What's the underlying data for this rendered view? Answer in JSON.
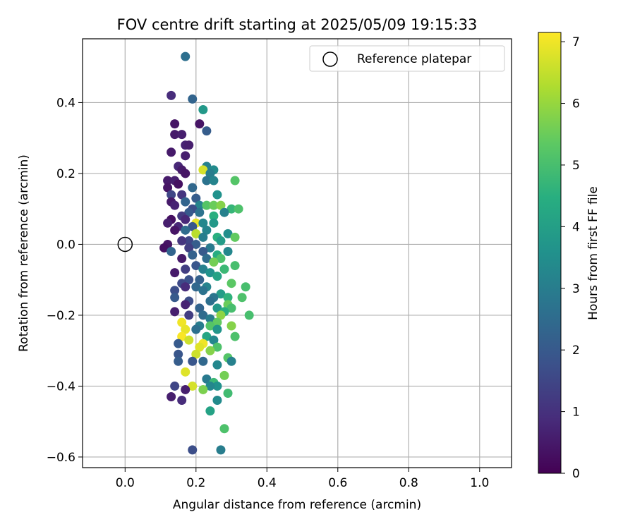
{
  "chart_data": {
    "type": "scatter",
    "title": "FOV centre drift starting at 2025/05/09 19:15:33",
    "xlabel": "Angular distance from reference (arcmin)",
    "ylabel": "Rotation from reference (arcmin)",
    "xlim": [
      -0.12,
      1.09
    ],
    "ylim": [
      -0.63,
      0.58
    ],
    "xticks": [
      "0.0",
      "0.2",
      "0.4",
      "0.6",
      "0.8",
      "1.0"
    ],
    "yticks": [
      "0.4",
      "0.2",
      "0.0",
      "−0.2",
      "−0.4",
      "−0.6"
    ],
    "grid": true,
    "legend": {
      "label": "Reference platepar",
      "placement": "top-right"
    },
    "reference_point": {
      "x": 0.0,
      "y": 0.0
    },
    "colorbar": {
      "label": "Hours from first FF file",
      "range": [
        0,
        7.15
      ],
      "ticks": [
        "0",
        "1",
        "2",
        "3",
        "4",
        "5",
        "6",
        "7"
      ],
      "colormap": "viridis"
    },
    "points": [
      {
        "x": 0.17,
        "y": 0.53,
        "h": 2.6
      },
      {
        "x": 0.13,
        "y": 0.42,
        "h": 0.9
      },
      {
        "x": 0.19,
        "y": 0.41,
        "h": 2.3
      },
      {
        "x": 0.22,
        "y": 0.38,
        "h": 3.8
      },
      {
        "x": 0.14,
        "y": 0.34,
        "h": 0.4
      },
      {
        "x": 0.21,
        "y": 0.34,
        "h": 0.4
      },
      {
        "x": 0.14,
        "y": 0.31,
        "h": 0.5
      },
      {
        "x": 0.16,
        "y": 0.31,
        "h": 0.6
      },
      {
        "x": 0.23,
        "y": 0.32,
        "h": 2.1
      },
      {
        "x": 0.17,
        "y": 0.28,
        "h": 0.7
      },
      {
        "x": 0.18,
        "y": 0.28,
        "h": 0.6
      },
      {
        "x": 0.13,
        "y": 0.26,
        "h": 0.5
      },
      {
        "x": 0.17,
        "y": 0.25,
        "h": 0.6
      },
      {
        "x": 0.15,
        "y": 0.22,
        "h": 0.8
      },
      {
        "x": 0.16,
        "y": 0.21,
        "h": 0.5
      },
      {
        "x": 0.23,
        "y": 0.22,
        "h": 3.1
      },
      {
        "x": 0.22,
        "y": 0.21,
        "h": 6.7
      },
      {
        "x": 0.25,
        "y": 0.21,
        "h": 3.4
      },
      {
        "x": 0.24,
        "y": 0.2,
        "h": 3.0
      },
      {
        "x": 0.17,
        "y": 0.2,
        "h": 0.4
      },
      {
        "x": 0.12,
        "y": 0.18,
        "h": 0.5
      },
      {
        "x": 0.14,
        "y": 0.18,
        "h": 0.6
      },
      {
        "x": 0.31,
        "y": 0.18,
        "h": 5.2
      },
      {
        "x": 0.23,
        "y": 0.18,
        "h": 2.7
      },
      {
        "x": 0.25,
        "y": 0.18,
        "h": 3.2
      },
      {
        "x": 0.15,
        "y": 0.17,
        "h": 0.3
      },
      {
        "x": 0.12,
        "y": 0.16,
        "h": 0.4
      },
      {
        "x": 0.19,
        "y": 0.16,
        "h": 2.4
      },
      {
        "x": 0.13,
        "y": 0.14,
        "h": 1.5
      },
      {
        "x": 0.16,
        "y": 0.14,
        "h": 1.1
      },
      {
        "x": 0.2,
        "y": 0.13,
        "h": 2.1
      },
      {
        "x": 0.26,
        "y": 0.14,
        "h": 3.6
      },
      {
        "x": 0.17,
        "y": 0.12,
        "h": 2.3
      },
      {
        "x": 0.21,
        "y": 0.11,
        "h": 3.2
      },
      {
        "x": 0.13,
        "y": 0.12,
        "h": 0.5
      },
      {
        "x": 0.14,
        "y": 0.11,
        "h": 0.7
      },
      {
        "x": 0.23,
        "y": 0.11,
        "h": 5.2
      },
      {
        "x": 0.25,
        "y": 0.11,
        "h": 5.5
      },
      {
        "x": 0.27,
        "y": 0.11,
        "h": 5.8
      },
      {
        "x": 0.3,
        "y": 0.1,
        "h": 4.7
      },
      {
        "x": 0.32,
        "y": 0.1,
        "h": 5.1
      },
      {
        "x": 0.28,
        "y": 0.09,
        "h": 3.1
      },
      {
        "x": 0.19,
        "y": 0.1,
        "h": 1.7
      },
      {
        "x": 0.18,
        "y": 0.09,
        "h": 2.0
      },
      {
        "x": 0.21,
        "y": 0.09,
        "h": 2.7
      },
      {
        "x": 0.16,
        "y": 0.08,
        "h": 1.2
      },
      {
        "x": 0.25,
        "y": 0.08,
        "h": 4.5
      },
      {
        "x": 0.13,
        "y": 0.07,
        "h": 0.3
      },
      {
        "x": 0.17,
        "y": 0.07,
        "h": 0.8
      },
      {
        "x": 0.2,
        "y": 0.06,
        "h": 6.9
      },
      {
        "x": 0.22,
        "y": 0.06,
        "h": 3.3
      },
      {
        "x": 0.25,
        "y": 0.06,
        "h": 3.8
      },
      {
        "x": 0.12,
        "y": 0.06,
        "h": 0.6
      },
      {
        "x": 0.15,
        "y": 0.05,
        "h": 0.8
      },
      {
        "x": 0.19,
        "y": 0.05,
        "h": 1.9
      },
      {
        "x": 0.17,
        "y": 0.04,
        "h": 2.5
      },
      {
        "x": 0.23,
        "y": 0.04,
        "h": 3.2
      },
      {
        "x": 0.14,
        "y": 0.04,
        "h": 0.4
      },
      {
        "x": 0.29,
        "y": 0.03,
        "h": 3.5
      },
      {
        "x": 0.2,
        "y": 0.03,
        "h": 6.4
      },
      {
        "x": 0.31,
        "y": 0.02,
        "h": 5.4
      },
      {
        "x": 0.26,
        "y": 0.02,
        "h": 4.5
      },
      {
        "x": 0.22,
        "y": 0.02,
        "h": 3.0
      },
      {
        "x": 0.18,
        "y": 0.01,
        "h": 1.5
      },
      {
        "x": 0.16,
        "y": 0.01,
        "h": 1.1
      },
      {
        "x": 0.27,
        "y": 0.01,
        "h": 3.9
      },
      {
        "x": 0.12,
        "y": 0.0,
        "h": 0.4
      },
      {
        "x": 0.2,
        "y": 0.0,
        "h": 2.1
      },
      {
        "x": 0.24,
        "y": -0.01,
        "h": 2.9
      },
      {
        "x": 0.11,
        "y": -0.01,
        "h": 0.3
      },
      {
        "x": 0.13,
        "y": -0.02,
        "h": 2.3
      },
      {
        "x": 0.18,
        "y": -0.01,
        "h": 1.3
      },
      {
        "x": 0.22,
        "y": -0.02,
        "h": 2.0
      },
      {
        "x": 0.29,
        "y": -0.02,
        "h": 3.3
      },
      {
        "x": 0.26,
        "y": -0.03,
        "h": 4.4
      },
      {
        "x": 0.16,
        "y": -0.04,
        "h": 0.5
      },
      {
        "x": 0.19,
        "y": -0.03,
        "h": 2.2
      },
      {
        "x": 0.23,
        "y": -0.04,
        "h": 2.5
      },
      {
        "x": 0.27,
        "y": -0.04,
        "h": 5.1
      },
      {
        "x": 0.25,
        "y": -0.05,
        "h": 5.6
      },
      {
        "x": 0.2,
        "y": -0.06,
        "h": 1.9
      },
      {
        "x": 0.31,
        "y": -0.06,
        "h": 5.0
      },
      {
        "x": 0.17,
        "y": -0.07,
        "h": 1.3
      },
      {
        "x": 0.22,
        "y": -0.07,
        "h": 3.1
      },
      {
        "x": 0.28,
        "y": -0.07,
        "h": 4.8
      },
      {
        "x": 0.14,
        "y": -0.08,
        "h": 0.5
      },
      {
        "x": 0.24,
        "y": -0.08,
        "h": 3.6
      },
      {
        "x": 0.26,
        "y": -0.09,
        "h": 4.1
      },
      {
        "x": 0.18,
        "y": -0.1,
        "h": 1.8
      },
      {
        "x": 0.21,
        "y": -0.1,
        "h": 2.2
      },
      {
        "x": 0.16,
        "y": -0.11,
        "h": 1.6
      },
      {
        "x": 0.3,
        "y": -0.11,
        "h": 5.3
      },
      {
        "x": 0.34,
        "y": -0.12,
        "h": 5.0
      },
      {
        "x": 0.23,
        "y": -0.12,
        "h": 3.2
      },
      {
        "x": 0.2,
        "y": -0.12,
        "h": 2.4
      },
      {
        "x": 0.17,
        "y": -0.12,
        "h": 0.9
      },
      {
        "x": 0.14,
        "y": -0.13,
        "h": 1.7
      },
      {
        "x": 0.22,
        "y": -0.13,
        "h": 2.7
      },
      {
        "x": 0.27,
        "y": -0.14,
        "h": 3.9
      },
      {
        "x": 0.25,
        "y": -0.15,
        "h": 2.8
      },
      {
        "x": 0.29,
        "y": -0.15,
        "h": 4.6
      },
      {
        "x": 0.33,
        "y": -0.15,
        "h": 5.1
      },
      {
        "x": 0.14,
        "y": -0.15,
        "h": 2.0
      },
      {
        "x": 0.18,
        "y": -0.16,
        "h": 1.7
      },
      {
        "x": 0.24,
        "y": -0.16,
        "h": 2.6
      },
      {
        "x": 0.17,
        "y": -0.17,
        "h": 0.7
      },
      {
        "x": 0.29,
        "y": -0.17,
        "h": 5.5
      },
      {
        "x": 0.3,
        "y": -0.18,
        "h": 5.0
      },
      {
        "x": 0.21,
        "y": -0.18,
        "h": 2.3
      },
      {
        "x": 0.26,
        "y": -0.18,
        "h": 3.8
      },
      {
        "x": 0.14,
        "y": -0.19,
        "h": 0.6
      },
      {
        "x": 0.28,
        "y": -0.19,
        "h": 4.5
      },
      {
        "x": 0.22,
        "y": -0.2,
        "h": 2.5
      },
      {
        "x": 0.35,
        "y": -0.2,
        "h": 5.0
      },
      {
        "x": 0.18,
        "y": -0.2,
        "h": 1.3
      },
      {
        "x": 0.27,
        "y": -0.2,
        "h": 5.9
      },
      {
        "x": 0.24,
        "y": -0.21,
        "h": 3.0
      },
      {
        "x": 0.16,
        "y": -0.22,
        "h": 7.0
      },
      {
        "x": 0.26,
        "y": -0.22,
        "h": 5.4
      },
      {
        "x": 0.3,
        "y": -0.23,
        "h": 5.8
      },
      {
        "x": 0.21,
        "y": -0.23,
        "h": 3.0
      },
      {
        "x": 0.24,
        "y": -0.23,
        "h": 5.2
      },
      {
        "x": 0.17,
        "y": -0.24,
        "h": 6.9
      },
      {
        "x": 0.2,
        "y": -0.24,
        "h": 2.6
      },
      {
        "x": 0.26,
        "y": -0.24,
        "h": 3.7
      },
      {
        "x": 0.16,
        "y": -0.26,
        "h": 7.1
      },
      {
        "x": 0.31,
        "y": -0.26,
        "h": 5.1
      },
      {
        "x": 0.23,
        "y": -0.26,
        "h": 4.2
      },
      {
        "x": 0.18,
        "y": -0.27,
        "h": 6.6
      },
      {
        "x": 0.25,
        "y": -0.27,
        "h": 3.3
      },
      {
        "x": 0.15,
        "y": -0.28,
        "h": 2.0
      },
      {
        "x": 0.22,
        "y": -0.28,
        "h": 7.0
      },
      {
        "x": 0.26,
        "y": -0.29,
        "h": 5.1
      },
      {
        "x": 0.21,
        "y": -0.29,
        "h": 6.8
      },
      {
        "x": 0.24,
        "y": -0.3,
        "h": 5.8
      },
      {
        "x": 0.2,
        "y": -0.31,
        "h": 6.6
      },
      {
        "x": 0.15,
        "y": -0.31,
        "h": 1.9
      },
      {
        "x": 0.29,
        "y": -0.32,
        "h": 5.2
      },
      {
        "x": 0.3,
        "y": -0.33,
        "h": 3.1
      },
      {
        "x": 0.19,
        "y": -0.33,
        "h": 1.9
      },
      {
        "x": 0.15,
        "y": -0.33,
        "h": 2.1
      },
      {
        "x": 0.22,
        "y": -0.33,
        "h": 2.4
      },
      {
        "x": 0.26,
        "y": -0.34,
        "h": 3.3
      },
      {
        "x": 0.17,
        "y": -0.36,
        "h": 6.8
      },
      {
        "x": 0.28,
        "y": -0.37,
        "h": 5.6
      },
      {
        "x": 0.23,
        "y": -0.38,
        "h": 2.9
      },
      {
        "x": 0.25,
        "y": -0.39,
        "h": 4.8
      },
      {
        "x": 0.26,
        "y": -0.4,
        "h": 3.6
      },
      {
        "x": 0.14,
        "y": -0.4,
        "h": 1.5
      },
      {
        "x": 0.19,
        "y": -0.4,
        "h": 6.7
      },
      {
        "x": 0.24,
        "y": -0.4,
        "h": 3.3
      },
      {
        "x": 0.17,
        "y": -0.41,
        "h": 0.6
      },
      {
        "x": 0.22,
        "y": -0.41,
        "h": 5.7
      },
      {
        "x": 0.29,
        "y": -0.42,
        "h": 4.9
      },
      {
        "x": 0.13,
        "y": -0.43,
        "h": 0.6
      },
      {
        "x": 0.16,
        "y": -0.44,
        "h": 0.9
      },
      {
        "x": 0.26,
        "y": -0.44,
        "h": 3.4
      },
      {
        "x": 0.24,
        "y": -0.47,
        "h": 4.1
      },
      {
        "x": 0.28,
        "y": -0.52,
        "h": 5.1
      },
      {
        "x": 0.19,
        "y": -0.58,
        "h": 1.7
      },
      {
        "x": 0.27,
        "y": -0.58,
        "h": 3.0
      }
    ]
  },
  "colors": {
    "grid": "#b0b0b0",
    "axes": "#000000",
    "legend_border": "#cccccc"
  }
}
